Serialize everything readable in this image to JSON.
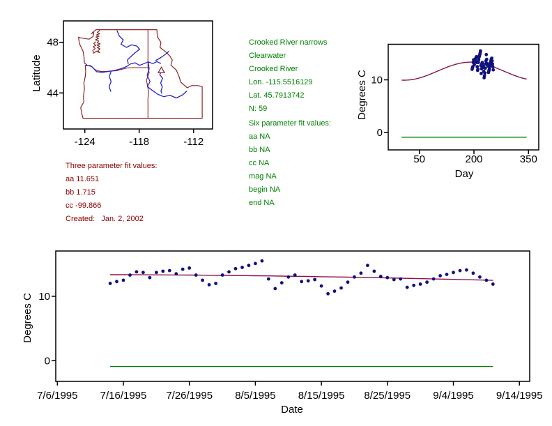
{
  "colors": {
    "background": "#ffffff",
    "map_border": "#8b2323",
    "river": "#2222cc",
    "data_point": "#10107e",
    "fit_line": "#8b1050",
    "reference_line": "#008000",
    "green_text": "#008000",
    "red_text": "#8b0000",
    "axis": "#000000"
  },
  "site_info_block": {
    "lines": [
      "Crooked River narrows",
      "Clearwater",
      "Crooked River",
      "Lon. -115.5516129",
      "Lat. 45.7913742",
      "N: 59"
    ]
  },
  "six_param_block": {
    "lines": [
      "Six parameter fit values:",
      "aa NA",
      "bb NA",
      "cc NA",
      "mag NA",
      "begin NA",
      "end NA"
    ]
  },
  "three_param_block": {
    "lines": [
      "Three parameter fit values:",
      "aa 11.651",
      "bb 1.715",
      "cc -99.866",
      "Created:   Jan. 2, 2002"
    ]
  },
  "chart_data": [
    {
      "type": "map",
      "name": "site-location-map",
      "ylabel": "Latitude",
      "xlabel": "",
      "x_ticks": [
        -124,
        -118,
        -112
      ],
      "x_tick_labels": [
        "-124",
        "-118",
        "-112"
      ],
      "y_ticks": [
        48,
        44
      ],
      "y_tick_labels": [
        "48",
        "44"
      ],
      "xlim": [
        -126.3,
        -110.0
      ],
      "ylim": [
        41.2,
        49.7
      ],
      "site_marker": {
        "name": "Crooked River narrows",
        "lon": -115.5516129,
        "lat": 45.7913742,
        "symbol": "triangle"
      },
      "state_outline": [
        [
          [
            -123.0,
            48.78
          ],
          [
            -123.27,
            48.69
          ],
          [
            -123.02,
            48.85
          ],
          [
            -122.76,
            49.0
          ],
          [
            -116.05,
            49.0
          ],
          [
            -116.0,
            48.45
          ],
          [
            -115.6,
            48.0
          ],
          [
            -115.7,
            47.6
          ],
          [
            -115.0,
            47.2
          ],
          [
            -114.6,
            46.9
          ],
          [
            -114.35,
            46.6
          ],
          [
            -114.5,
            46.2
          ],
          [
            -113.9,
            45.8
          ],
          [
            -113.6,
            45.3
          ],
          [
            -113.42,
            44.86
          ],
          [
            -112.7,
            44.4
          ],
          [
            -112.2,
            44.58
          ],
          [
            -111.5,
            44.58
          ],
          [
            -111.05,
            44.5
          ],
          [
            -111.05,
            42.0
          ],
          [
            -114.0,
            42.0
          ],
          [
            -117.0,
            42.0
          ],
          [
            -120.0,
            42.0
          ],
          [
            -124.2,
            42.0
          ],
          [
            -124.35,
            42.4
          ],
          [
            -124.45,
            42.85
          ],
          [
            -124.1,
            43.3
          ],
          [
            -124.15,
            43.7
          ],
          [
            -124.05,
            44.3
          ],
          [
            -124.1,
            44.8
          ],
          [
            -123.95,
            45.3
          ],
          [
            -123.9,
            45.7
          ],
          [
            -123.95,
            46.15
          ],
          [
            -123.8,
            46.25
          ],
          [
            -124.05,
            46.35
          ],
          [
            -124.1,
            46.9
          ],
          [
            -124.2,
            47.3
          ],
          [
            -124.6,
            47.9
          ],
          [
            -124.7,
            48.4
          ],
          [
            -124.45,
            48.35
          ],
          [
            -123.55,
            48.25
          ],
          [
            -123.1,
            48.45
          ],
          [
            -123.0,
            48.78
          ]
        ]
      ],
      "state_borders": [
        [
          [
            -117.03,
            49.0
          ],
          [
            -117.03,
            46.0
          ],
          [
            -116.9,
            45.6
          ],
          [
            -117.2,
            45.0
          ],
          [
            -117.05,
            44.45
          ],
          [
            -116.95,
            44.0
          ],
          [
            -117.03,
            43.6
          ],
          [
            -117.03,
            42.0
          ]
        ],
        [
          [
            -123.9,
            46.15
          ],
          [
            -123.4,
            46.17
          ],
          [
            -122.9,
            45.85
          ],
          [
            -122.3,
            45.7
          ],
          [
            -121.7,
            45.7
          ],
          [
            -121.1,
            45.72
          ],
          [
            -120.5,
            45.75
          ],
          [
            -119.9,
            45.87
          ],
          [
            -119.3,
            45.98
          ],
          [
            -118.7,
            46.0
          ],
          [
            -117.03,
            46.0
          ]
        ]
      ],
      "coast_detail": [
        [
          [
            -122.35,
            48.95
          ],
          [
            -122.62,
            48.78
          ],
          [
            -122.36,
            48.68
          ],
          [
            -122.72,
            48.58
          ],
          [
            -122.42,
            48.48
          ],
          [
            -122.76,
            48.42
          ],
          [
            -122.5,
            48.3
          ],
          [
            -122.82,
            48.2
          ],
          [
            -122.46,
            48.1
          ],
          [
            -122.62,
            47.95
          ],
          [
            -122.3,
            47.88
          ],
          [
            -122.66,
            47.78
          ],
          [
            -122.36,
            47.68
          ],
          [
            -122.62,
            47.58
          ],
          [
            -122.32,
            47.48
          ],
          [
            -122.56,
            47.33
          ],
          [
            -122.36,
            47.18
          ],
          [
            -122.72,
            47.3
          ],
          [
            -123.02,
            47.14
          ],
          [
            -123.12,
            47.36
          ],
          [
            -122.86,
            47.5
          ],
          [
            -123.06,
            47.66
          ],
          [
            -122.8,
            47.76
          ],
          [
            -123.02,
            47.92
          ],
          [
            -122.78,
            48.05
          ]
        ]
      ],
      "rivers": [
        [
          [
            -120.45,
            48.95
          ],
          [
            -120.2,
            48.5
          ],
          [
            -119.75,
            48.2
          ],
          [
            -120.0,
            47.85
          ],
          [
            -119.4,
            47.6
          ],
          [
            -118.85,
            47.8
          ],
          [
            -118.25,
            47.7
          ],
          [
            -117.95,
            47.45
          ],
          [
            -118.5,
            47.15
          ],
          [
            -118.95,
            46.85
          ],
          [
            -119.3,
            46.6
          ],
          [
            -119.2,
            46.3
          ]
        ],
        [
          [
            -123.9,
            46.2
          ],
          [
            -123.25,
            46.1
          ],
          [
            -122.7,
            45.68
          ],
          [
            -122.05,
            45.62
          ],
          [
            -121.4,
            45.7
          ],
          [
            -120.7,
            45.78
          ],
          [
            -120.0,
            45.92
          ],
          [
            -119.4,
            46.08
          ],
          [
            -119.0,
            46.28
          ],
          [
            -118.45,
            46.38
          ],
          [
            -117.95,
            46.18
          ],
          [
            -117.45,
            46.32
          ],
          [
            -117.0,
            46.46
          ],
          [
            -116.5,
            46.32
          ],
          [
            -116.05,
            46.48
          ],
          [
            -115.6,
            46.32
          ]
        ],
        [
          [
            -117.0,
            46.46
          ],
          [
            -116.9,
            45.9
          ],
          [
            -117.12,
            45.4
          ],
          [
            -116.8,
            44.9
          ],
          [
            -117.1,
            44.5
          ],
          [
            -116.55,
            44.2
          ],
          [
            -115.95,
            43.9
          ],
          [
            -115.3,
            43.7
          ],
          [
            -114.6,
            43.82
          ],
          [
            -113.9,
            43.6
          ],
          [
            -113.2,
            43.85
          ],
          [
            -112.75,
            44.15
          ]
        ],
        [
          [
            -121.1,
            45.7
          ],
          [
            -121.3,
            45.3
          ],
          [
            -121.1,
            44.9
          ],
          [
            -121.32,
            44.5
          ],
          [
            -121.12,
            44.1
          ]
        ],
        [
          [
            -116.2,
            46.55
          ],
          [
            -115.6,
            46.8
          ],
          [
            -115.1,
            47.05
          ],
          [
            -114.7,
            47.3
          ]
        ],
        [
          [
            -115.5,
            45.78
          ],
          [
            -115.72,
            45.45
          ],
          [
            -115.42,
            45.15
          ],
          [
            -115.62,
            44.8
          ],
          [
            -115.45,
            44.45
          ],
          [
            -115.6,
            44.15
          ],
          [
            -115.48,
            43.95
          ]
        ]
      ]
    },
    {
      "type": "scatter",
      "name": "seasonal-fit-plot",
      "xlabel": "Day",
      "ylabel": "Degrees C",
      "x_ticks": [
        50,
        200,
        350
      ],
      "x_tick_labels": [
        "50",
        "200",
        "350"
      ],
      "y_ticks": [
        0,
        10
      ],
      "y_tick_labels": [
        "0",
        "10"
      ],
      "xlim": [
        -36,
        378
      ],
      "ylim": [
        -3.3,
        16.9
      ],
      "points": {
        "day_of_year_start": 195,
        "start_date": "7/14/1995",
        "values": [
          12,
          12.3,
          12.5,
          13.3,
          13.8,
          13.7,
          12.9,
          13.7,
          13.9,
          14,
          13.5,
          14.2,
          14.4,
          13.3,
          12.5,
          11.8,
          12,
          13.3,
          13.8,
          14.3,
          14.5,
          14.8,
          15.1,
          15.5,
          12.7,
          11.2,
          12.1,
          13,
          13.3,
          12.3,
          12.4,
          12.6,
          11.6,
          10.4,
          10.8,
          11.3,
          12.2,
          13,
          13.6,
          14.8,
          13.9,
          13.1,
          12.9,
          12.6,
          12.7,
          11.4,
          11.7,
          11.9,
          12.2,
          12.7,
          13.2,
          13.4,
          13.7,
          14,
          14.1,
          13.6,
          13,
          12.5,
          11.9
        ]
      },
      "fit": {
        "aa": 11.651,
        "bb": 1.715,
        "cc": -99.866,
        "period": 365,
        "formula": "aa + bb*sin(2*pi*(day+cc)/365)",
        "day_range": [
          1,
          345
        ]
      },
      "reference_line": {
        "y": -0.9,
        "day_range": [
          1,
          345
        ]
      }
    },
    {
      "type": "scatter",
      "name": "timeseries-plot",
      "xlabel": "Date",
      "ylabel": "Degrees C",
      "x_ticks": [
        187,
        197,
        207,
        217,
        227,
        237,
        247,
        257
      ],
      "x_tick_labels": [
        "7/6/1995",
        "7/16/1995",
        "7/26/1995",
        "8/5/1995",
        "8/15/1995",
        "8/25/1995",
        "9/4/1995",
        "9/14/1995"
      ],
      "y_ticks": [
        0,
        10
      ],
      "y_tick_labels": [
        "0",
        "10"
      ],
      "xlim": [
        186.8,
        258.6
      ],
      "ylim": [
        -3.2,
        17.1
      ],
      "points": {
        "day_of_year_start": 195,
        "start_date": "7/14/1995",
        "values": [
          12,
          12.3,
          12.5,
          13.3,
          13.8,
          13.7,
          12.9,
          13.7,
          13.9,
          14,
          13.5,
          14.2,
          14.4,
          13.3,
          12.5,
          11.8,
          12,
          13.3,
          13.8,
          14.3,
          14.5,
          14.8,
          15.1,
          15.5,
          12.7,
          11.2,
          12.1,
          13,
          13.3,
          12.3,
          12.4,
          12.6,
          11.6,
          10.4,
          10.8,
          11.3,
          12.2,
          13,
          13.6,
          14.8,
          13.9,
          13.1,
          12.9,
          12.6,
          12.7,
          11.4,
          11.7,
          11.9,
          12.2,
          12.7,
          13.2,
          13.4,
          13.7,
          14,
          14.1,
          13.6,
          13,
          12.5,
          11.9
        ]
      },
      "fit": {
        "aa": 11.651,
        "bb": 1.715,
        "cc": -99.866,
        "period": 365,
        "formula": "aa + bb*sin(2*pi*(day+cc)/365)",
        "day_range": [
          195,
          253
        ]
      },
      "reference_line": {
        "y": -0.9,
        "day_range": [
          195,
          253
        ]
      }
    }
  ]
}
